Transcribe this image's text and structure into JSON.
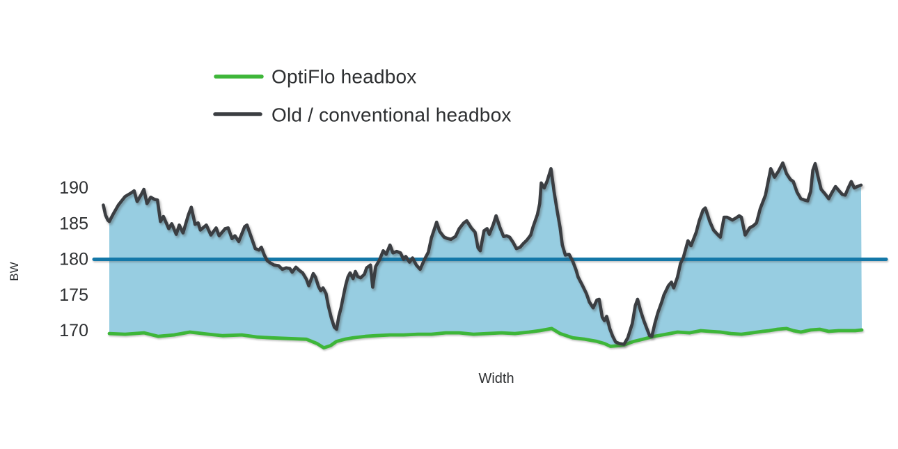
{
  "legend": {
    "items": [
      {
        "label": "OptiFlo headbox",
        "color": "#3eb639"
      },
      {
        "label": "Old / conventional headbox",
        "color": "#3b3e42"
      }
    ]
  },
  "axes": {
    "y_label": "BW",
    "x_label": "Width",
    "y_ticks": [
      "190",
      "185",
      "180",
      "175",
      "170"
    ]
  },
  "colors": {
    "background": "#ffffff",
    "text": "#2d2f31",
    "area_fill": "#97cde1",
    "target_line": "#1478a8",
    "old_line": "#3b3e42",
    "optiflo_line": "#3eb639"
  },
  "chart_data": {
    "type": "area",
    "title": "",
    "xlabel": "Width",
    "ylabel": "BW",
    "x_unit": "percent of web width",
    "ylim": [
      166.5,
      194.5
    ],
    "y_tick_values": [
      190,
      185,
      180,
      175,
      170
    ],
    "grid": false,
    "legend_position": "top-left",
    "target_line": {
      "value": 180,
      "color": "#1478a8"
    },
    "fill_between": {
      "upper": "Old / conventional headbox",
      "lower": "OptiFlo headbox",
      "color": "#97cde1"
    },
    "series": [
      {
        "name": "OptiFlo headbox",
        "color": "#3eb639",
        "points": [
          [
            0,
            169.6
          ],
          [
            2.1,
            169.5
          ],
          [
            4.6,
            169.7
          ],
          [
            6.5,
            169.2
          ],
          [
            8.6,
            169.4
          ],
          [
            10.7,
            169.8
          ],
          [
            13.2,
            169.5
          ],
          [
            15.1,
            169.3
          ],
          [
            17.6,
            169.4
          ],
          [
            19.7,
            169.1
          ],
          [
            21.6,
            169.0
          ],
          [
            23.9,
            168.9
          ],
          [
            26.2,
            168.8
          ],
          [
            27.6,
            168.2
          ],
          [
            28.5,
            167.6
          ],
          [
            29.4,
            167.9
          ],
          [
            30.2,
            168.5
          ],
          [
            31.3,
            168.8
          ],
          [
            32.4,
            169.0
          ],
          [
            34.0,
            169.2
          ],
          [
            35.4,
            169.3
          ],
          [
            37.3,
            169.4
          ],
          [
            39.1,
            169.4
          ],
          [
            41.0,
            169.5
          ],
          [
            42.8,
            169.5
          ],
          [
            44.7,
            169.7
          ],
          [
            46.5,
            169.7
          ],
          [
            48.4,
            169.5
          ],
          [
            50.2,
            169.6
          ],
          [
            52.1,
            169.7
          ],
          [
            53.9,
            169.6
          ],
          [
            55.8,
            169.8
          ],
          [
            57.2,
            170.0
          ],
          [
            58.8,
            170.3
          ],
          [
            59.9,
            169.6
          ],
          [
            61.6,
            169.0
          ],
          [
            63.2,
            168.8
          ],
          [
            64.8,
            168.5
          ],
          [
            65.8,
            168.2
          ],
          [
            66.6,
            167.8
          ],
          [
            67.8,
            167.9
          ],
          [
            68.4,
            168.0
          ],
          [
            69.7,
            168.5
          ],
          [
            70.9,
            168.8
          ],
          [
            72.4,
            169.2
          ],
          [
            74.0,
            169.5
          ],
          [
            75.5,
            169.8
          ],
          [
            77.1,
            169.7
          ],
          [
            78.6,
            170.0
          ],
          [
            79.8,
            169.9
          ],
          [
            81.2,
            169.8
          ],
          [
            82.6,
            169.6
          ],
          [
            84.0,
            169.5
          ],
          [
            85.4,
            169.7
          ],
          [
            86.8,
            169.9
          ],
          [
            87.7,
            170.0
          ],
          [
            88.8,
            170.2
          ],
          [
            90.0,
            170.3
          ],
          [
            90.9,
            170.0
          ],
          [
            91.9,
            169.8
          ],
          [
            93.2,
            170.1
          ],
          [
            94.4,
            170.2
          ],
          [
            95.6,
            169.9
          ],
          [
            96.9,
            170.0
          ],
          [
            98.1,
            170.0
          ],
          [
            99.1,
            170.0
          ],
          [
            100,
            170.1
          ]
        ]
      },
      {
        "name": "Old / conventional headbox",
        "color": "#3b3e42",
        "points": [
          [
            -0.8,
            187.6
          ],
          [
            -0.5,
            186.2
          ],
          [
            -0.2,
            185.5
          ],
          [
            0,
            185.3
          ],
          [
            0.5,
            186.3
          ],
          [
            1.2,
            187.6
          ],
          [
            2.1,
            188.8
          ],
          [
            2.9,
            189.3
          ],
          [
            3.3,
            189.6
          ],
          [
            3.7,
            188.1
          ],
          [
            4.2,
            189.0
          ],
          [
            4.6,
            189.8
          ],
          [
            5.0,
            187.8
          ],
          [
            5.5,
            188.7
          ],
          [
            6.0,
            188.4
          ],
          [
            6.4,
            188.3
          ],
          [
            6.8,
            185.3
          ],
          [
            7.2,
            186.0
          ],
          [
            7.9,
            184.3
          ],
          [
            8.3,
            185.0
          ],
          [
            8.9,
            183.5
          ],
          [
            9.3,
            184.8
          ],
          [
            9.8,
            183.7
          ],
          [
            10.5,
            186.2
          ],
          [
            10.9,
            187.3
          ],
          [
            11.4,
            184.9
          ],
          [
            11.8,
            185.1
          ],
          [
            12.1,
            184.1
          ],
          [
            12.9,
            184.8
          ],
          [
            13.5,
            183.4
          ],
          [
            14.2,
            184.4
          ],
          [
            14.6,
            183.3
          ],
          [
            15.4,
            184.3
          ],
          [
            15.8,
            184.4
          ],
          [
            16.3,
            182.9
          ],
          [
            16.7,
            183.3
          ],
          [
            17.2,
            182.5
          ],
          [
            18.0,
            184.6
          ],
          [
            18.3,
            184.8
          ],
          [
            19.0,
            182.7
          ],
          [
            19.4,
            181.5
          ],
          [
            19.9,
            181.3
          ],
          [
            20.2,
            181.7
          ],
          [
            20.6,
            180.6
          ],
          [
            21.0,
            179.8
          ],
          [
            21.4,
            179.5
          ],
          [
            21.9,
            179.2
          ],
          [
            22.5,
            179.1
          ],
          [
            23.0,
            178.6
          ],
          [
            23.5,
            178.8
          ],
          [
            24.0,
            178.7
          ],
          [
            24.3,
            178.2
          ],
          [
            24.8,
            178.9
          ],
          [
            25.3,
            178.4
          ],
          [
            25.7,
            178.1
          ],
          [
            26.2,
            177.2
          ],
          [
            26.5,
            176.3
          ],
          [
            27.1,
            178.0
          ],
          [
            27.4,
            177.5
          ],
          [
            27.8,
            176.2
          ],
          [
            28.1,
            175.6
          ],
          [
            28.4,
            176.0
          ],
          [
            28.8,
            175.2
          ],
          [
            29.1,
            173.5
          ],
          [
            29.5,
            171.8
          ],
          [
            29.9,
            170.5
          ],
          [
            30.2,
            170.2
          ],
          [
            30.5,
            172.0
          ],
          [
            30.8,
            173.2
          ],
          [
            31.1,
            174.8
          ],
          [
            31.4,
            176.3
          ],
          [
            31.7,
            177.5
          ],
          [
            32.0,
            178.1
          ],
          [
            32.4,
            177.3
          ],
          [
            32.7,
            178.3
          ],
          [
            33.0,
            177.6
          ],
          [
            33.4,
            177.4
          ],
          [
            33.9,
            177.9
          ],
          [
            34.2,
            178.8
          ],
          [
            34.7,
            179.2
          ],
          [
            35.0,
            176.1
          ],
          [
            35.4,
            179.0
          ],
          [
            35.9,
            179.9
          ],
          [
            36.4,
            181.2
          ],
          [
            36.8,
            180.7
          ],
          [
            37.3,
            182.0
          ],
          [
            37.7,
            180.9
          ],
          [
            38.2,
            181.1
          ],
          [
            38.7,
            180.9
          ],
          [
            39.1,
            180.0
          ],
          [
            39.4,
            180.4
          ],
          [
            39.9,
            179.6
          ],
          [
            40.3,
            180.2
          ],
          [
            40.8,
            179.2
          ],
          [
            41.3,
            178.6
          ],
          [
            41.9,
            180.0
          ],
          [
            42.4,
            181.0
          ],
          [
            42.8,
            183.0
          ],
          [
            43.5,
            185.2
          ],
          [
            43.9,
            183.9
          ],
          [
            44.5,
            183.1
          ],
          [
            45.0,
            182.9
          ],
          [
            45.4,
            182.8
          ],
          [
            46.0,
            183.2
          ],
          [
            46.5,
            184.3
          ],
          [
            47.1,
            185.1
          ],
          [
            47.5,
            185.4
          ],
          [
            48.1,
            184.4
          ],
          [
            48.6,
            183.8
          ],
          [
            49.0,
            181.6
          ],
          [
            49.3,
            181.2
          ],
          [
            49.8,
            184.0
          ],
          [
            50.2,
            184.3
          ],
          [
            50.5,
            183.5
          ],
          [
            51.0,
            184.8
          ],
          [
            51.4,
            186.1
          ],
          [
            51.9,
            184.5
          ],
          [
            52.4,
            183.2
          ],
          [
            52.8,
            183.3
          ],
          [
            53.2,
            183.1
          ],
          [
            53.7,
            182.3
          ],
          [
            54.1,
            181.5
          ],
          [
            54.6,
            181.7
          ],
          [
            55.0,
            182.2
          ],
          [
            55.5,
            182.7
          ],
          [
            56.0,
            183.4
          ],
          [
            56.3,
            184.5
          ],
          [
            56.9,
            186.3
          ],
          [
            57.2,
            187.8
          ],
          [
            57.4,
            190.7
          ],
          [
            57.8,
            190.0
          ],
          [
            58.2,
            191.0
          ],
          [
            58.7,
            192.7
          ],
          [
            59.1,
            189.5
          ],
          [
            59.5,
            186.9
          ],
          [
            59.9,
            184.5
          ],
          [
            60.2,
            182.0
          ],
          [
            60.6,
            180.6
          ],
          [
            61.1,
            180.7
          ],
          [
            61.6,
            179.7
          ],
          [
            62.0,
            178.6
          ],
          [
            62.3,
            177.5
          ],
          [
            62.8,
            176.5
          ],
          [
            63.4,
            175.2
          ],
          [
            63.8,
            174.0
          ],
          [
            64.3,
            173.2
          ],
          [
            64.8,
            174.3
          ],
          [
            65.1,
            174.4
          ],
          [
            65.5,
            171.9
          ],
          [
            65.8,
            171.4
          ],
          [
            66.1,
            172.0
          ],
          [
            66.5,
            170.3
          ],
          [
            66.9,
            169.2
          ],
          [
            67.3,
            168.4
          ],
          [
            67.8,
            168.2
          ],
          [
            68.4,
            168.1
          ],
          [
            68.9,
            169.0
          ],
          [
            69.5,
            171.0
          ],
          [
            69.9,
            173.5
          ],
          [
            70.2,
            174.4
          ],
          [
            70.6,
            172.8
          ],
          [
            71.0,
            171.5
          ],
          [
            71.4,
            170.4
          ],
          [
            71.8,
            169.3
          ],
          [
            72.1,
            169.2
          ],
          [
            72.5,
            171.0
          ],
          [
            72.9,
            172.5
          ],
          [
            73.4,
            174.0
          ],
          [
            73.7,
            175.0
          ],
          [
            74.3,
            176.3
          ],
          [
            74.7,
            176.8
          ],
          [
            75.0,
            176.0
          ],
          [
            75.5,
            177.5
          ],
          [
            75.9,
            179.4
          ],
          [
            76.3,
            180.3
          ],
          [
            76.9,
            182.6
          ],
          [
            77.3,
            181.9
          ],
          [
            78.0,
            183.8
          ],
          [
            78.4,
            185.4
          ],
          [
            78.9,
            186.9
          ],
          [
            79.2,
            187.2
          ],
          [
            79.8,
            185.3
          ],
          [
            80.3,
            184.1
          ],
          [
            81.0,
            183.3
          ],
          [
            81.2,
            183.1
          ],
          [
            81.7,
            185.9
          ],
          [
            82.1,
            185.9
          ],
          [
            82.8,
            185.5
          ],
          [
            83.3,
            185.8
          ],
          [
            83.7,
            186.1
          ],
          [
            84.0,
            185.9
          ],
          [
            84.5,
            183.4
          ],
          [
            85.1,
            184.4
          ],
          [
            85.6,
            184.7
          ],
          [
            86.0,
            185.1
          ],
          [
            86.5,
            187.1
          ],
          [
            87.2,
            189.0
          ],
          [
            87.9,
            192.7
          ],
          [
            88.4,
            191.5
          ],
          [
            88.9,
            192.3
          ],
          [
            89.5,
            193.5
          ],
          [
            90.0,
            192.0
          ],
          [
            90.5,
            191.2
          ],
          [
            90.9,
            190.9
          ],
          [
            91.4,
            189.4
          ],
          [
            91.9,
            188.5
          ],
          [
            92.4,
            188.3
          ],
          [
            92.8,
            188.2
          ],
          [
            93.2,
            189.5
          ],
          [
            93.5,
            192.5
          ],
          [
            93.8,
            193.4
          ],
          [
            94.2,
            191.5
          ],
          [
            94.6,
            189.8
          ],
          [
            95.1,
            189.2
          ],
          [
            95.6,
            188.5
          ],
          [
            96.0,
            189.3
          ],
          [
            96.5,
            190.2
          ],
          [
            96.9,
            189.7
          ],
          [
            97.4,
            189.1
          ],
          [
            97.8,
            189.0
          ],
          [
            98.2,
            190.0
          ],
          [
            98.6,
            190.9
          ],
          [
            99.0,
            190.0
          ],
          [
            99.4,
            190.2
          ],
          [
            99.9,
            190.4
          ]
        ]
      }
    ]
  }
}
